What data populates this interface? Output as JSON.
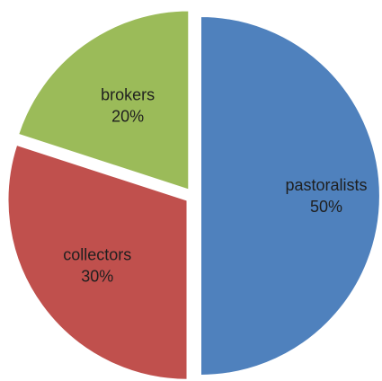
{
  "chart_data": {
    "type": "pie",
    "categories": [
      "pastoralists",
      "collectors",
      "brokers"
    ],
    "values": [
      50,
      30,
      20
    ],
    "value_labels": [
      "50%",
      "30%",
      "20%"
    ],
    "colors": [
      "#4f81bd",
      "#c0504d",
      "#9bbb59"
    ],
    "start_angle": "12 o'clock",
    "direction": "clockwise",
    "exploded": true,
    "legend": "none"
  }
}
